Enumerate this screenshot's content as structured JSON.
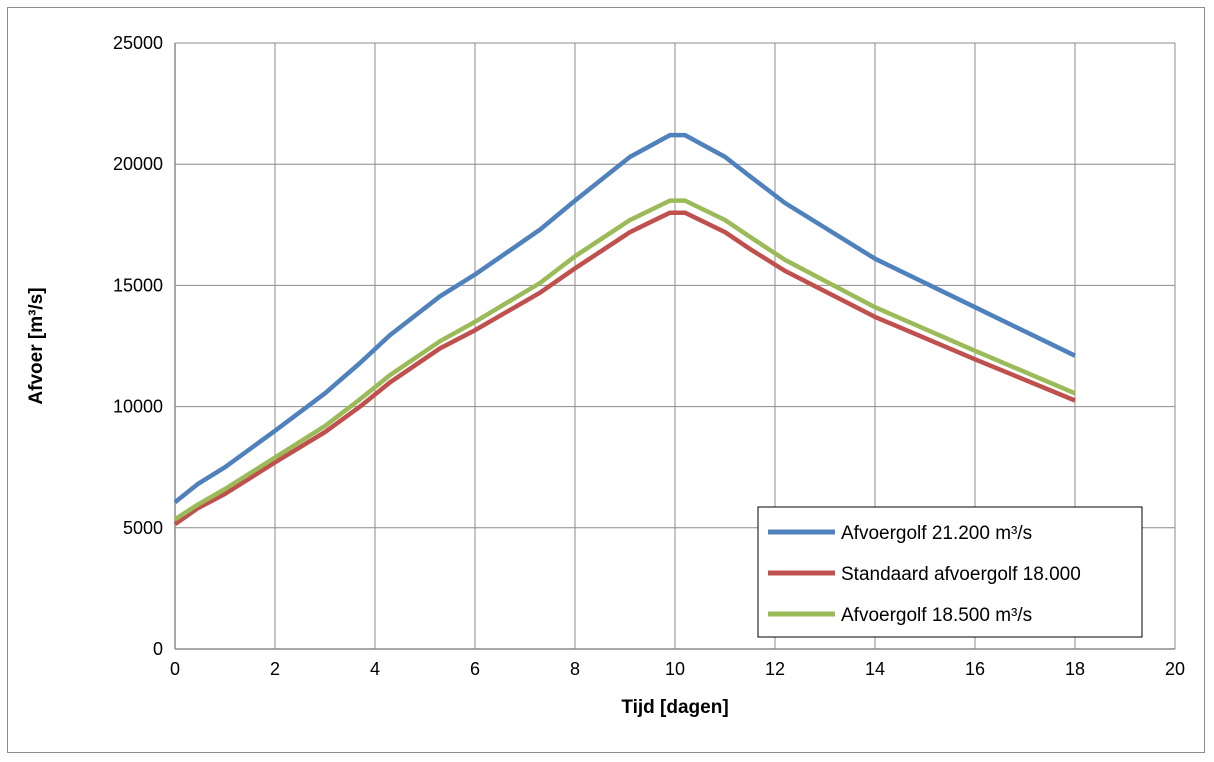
{
  "chart_data": {
    "type": "line",
    "title": "",
    "xlabel": "Tijd [dagen]",
    "ylabel": "Afvoer [m³/s]",
    "xlim": [
      0,
      20
    ],
    "ylim": [
      0,
      25000
    ],
    "xticks": [
      "0",
      "2",
      "4",
      "6",
      "8",
      "10",
      "12",
      "14",
      "16",
      "18",
      "20"
    ],
    "yticks": [
      "0",
      "5000",
      "10000",
      "15000",
      "20000",
      "25000"
    ],
    "grid": true,
    "legend_position": "bottom-right",
    "series": [
      {
        "name": "Afvoergolf 21.200 m³/s",
        "color": "#4f81bd",
        "points": [
          [
            0,
            6050
          ],
          [
            0.45,
            6800
          ],
          [
            1,
            7500
          ],
          [
            2,
            9000
          ],
          [
            3,
            10550
          ],
          [
            3.7,
            11800
          ],
          [
            4.3,
            12950
          ],
          [
            5.3,
            14550
          ],
          [
            6,
            15450
          ],
          [
            7.3,
            17300
          ],
          [
            8,
            18500
          ],
          [
            9.1,
            20300
          ],
          [
            9.9,
            21200
          ],
          [
            10.2,
            21200
          ],
          [
            11,
            20300
          ],
          [
            11.5,
            19500
          ],
          [
            12.2,
            18400
          ],
          [
            14,
            16100
          ],
          [
            16,
            14100
          ],
          [
            18,
            12100
          ]
        ]
      },
      {
        "name": "Standaard afvoergolf 18.000",
        "color": "#c0504d",
        "points": [
          [
            0,
            5150
          ],
          [
            0.45,
            5800
          ],
          [
            1,
            6400
          ],
          [
            2,
            7700
          ],
          [
            3,
            8950
          ],
          [
            3.7,
            10000
          ],
          [
            4.3,
            11000
          ],
          [
            5.3,
            12400
          ],
          [
            6,
            13150
          ],
          [
            7.3,
            14700
          ],
          [
            8,
            15700
          ],
          [
            9.1,
            17200
          ],
          [
            9.9,
            18000
          ],
          [
            10.2,
            18000
          ],
          [
            11,
            17200
          ],
          [
            11.5,
            16500
          ],
          [
            12.2,
            15600
          ],
          [
            14,
            13700
          ],
          [
            16,
            11950
          ],
          [
            18,
            10250
          ]
        ]
      },
      {
        "name": "Afvoergolf 18.500 m³/s",
        "color": "#9bbb59",
        "points": [
          [
            0,
            5350
          ],
          [
            0.45,
            5950
          ],
          [
            1,
            6600
          ],
          [
            2,
            7900
          ],
          [
            3,
            9200
          ],
          [
            3.7,
            10300
          ],
          [
            4.3,
            11300
          ],
          [
            5.3,
            12700
          ],
          [
            6,
            13500
          ],
          [
            7.3,
            15100
          ],
          [
            8,
            16200
          ],
          [
            9.1,
            17700
          ],
          [
            9.9,
            18500
          ],
          [
            10.2,
            18500
          ],
          [
            11,
            17700
          ],
          [
            11.5,
            17000
          ],
          [
            12.2,
            16050
          ],
          [
            14,
            14100
          ],
          [
            16,
            12300
          ],
          [
            18,
            10550
          ]
        ]
      }
    ]
  }
}
